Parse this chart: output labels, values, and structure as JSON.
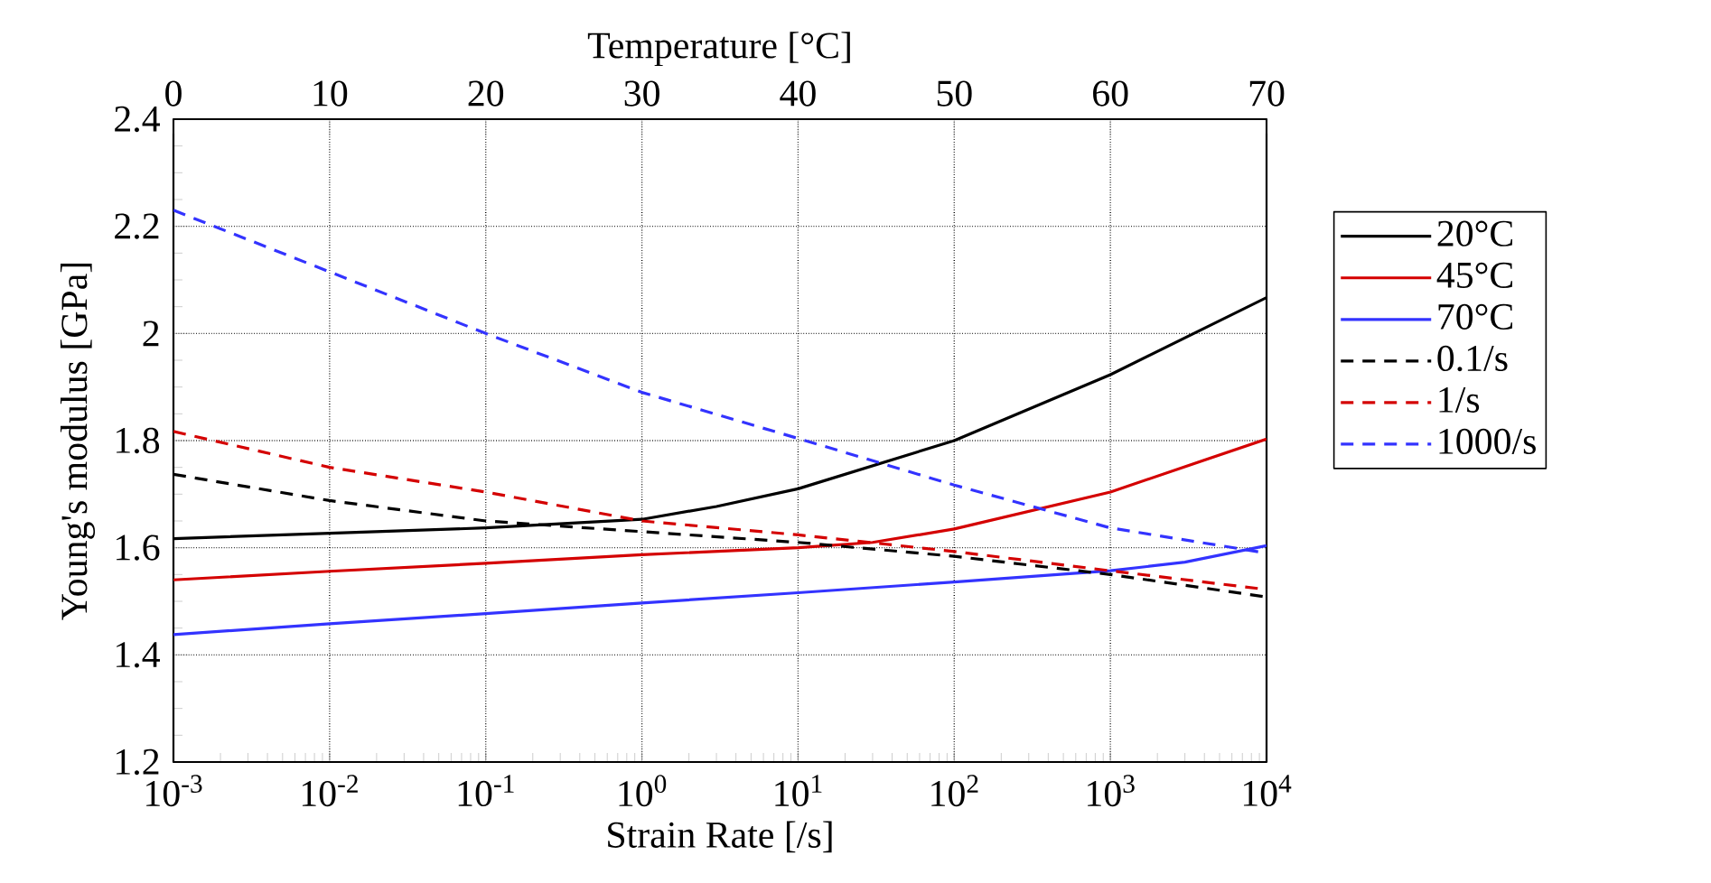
{
  "chart_data": {
    "type": "line",
    "xlabel": "Strain Rate [/s]",
    "x2label": "Temperature [°C]",
    "ylabel": "Young's modulus [GPa]",
    "log": "x",
    "xlim": [
      0.001,
      10000
    ],
    "xticks": [
      {
        "value": 0.001,
        "label": "10$^{-3}$"
      },
      {
        "value": 0.01,
        "label": "10$^{-2}$"
      },
      {
        "value": 0.1,
        "label": "10$^{-1}$"
      },
      {
        "value": 1,
        "label": "10$^{0}$"
      },
      {
        "value": 10,
        "label": "10$^{1}$"
      },
      {
        "value": 100,
        "label": "10$^{2}$"
      },
      {
        "value": 1000,
        "label": "10$^{3}$"
      },
      {
        "value": 10000,
        "label": "10$^{4}$"
      }
    ],
    "x2lim": [
      0,
      70
    ],
    "x2ticks": [
      0,
      10,
      20,
      30,
      40,
      50,
      60,
      70
    ],
    "ylim": [
      1.2,
      2.4
    ],
    "yticks": [
      1.2,
      1.4,
      1.6,
      1.8,
      2,
      2.2,
      2.4
    ],
    "grid": true,
    "legend": "right",
    "series": [
      {
        "name": "20°C",
        "color": "#000000",
        "line_style": "solid",
        "x": [
          0.001,
          0.01,
          0.1,
          1,
          3,
          10,
          100,
          1000,
          10000
        ],
        "values": [
          1.617,
          1.627,
          1.637,
          1.653,
          1.677,
          1.71,
          1.8,
          1.923,
          2.067
        ]
      },
      {
        "name": "45°C",
        "color": "#d40000",
        "line_style": "solid",
        "x": [
          0.001,
          0.01,
          0.1,
          1,
          10,
          30,
          100,
          1000,
          10000
        ],
        "values": [
          1.54,
          1.556,
          1.571,
          1.587,
          1.6,
          1.61,
          1.635,
          1.704,
          1.803
        ]
      },
      {
        "name": "70°C",
        "color": "#3333ff",
        "line_style": "solid",
        "x": [
          0.001,
          0.01,
          0.1,
          1,
          10,
          100,
          1000,
          3000,
          10000
        ],
        "values": [
          1.438,
          1.458,
          1.477,
          1.497,
          1.516,
          1.536,
          1.557,
          1.573,
          1.604
        ]
      },
      {
        "name": "0.1/s",
        "color": "#000000",
        "line_style": "dashed",
        "axis": "x2",
        "x": [
          0,
          10,
          20,
          30,
          40,
          50,
          60,
          70
        ],
        "values": [
          1.737,
          1.688,
          1.65,
          1.63,
          1.61,
          1.584,
          1.55,
          1.508
        ]
      },
      {
        "name": "1/s",
        "color": "#d40000",
        "line_style": "dashed",
        "axis": "x2",
        "x": [
          0,
          10,
          20,
          30,
          40,
          50,
          60,
          70
        ],
        "values": [
          1.817,
          1.75,
          1.704,
          1.65,
          1.624,
          1.593,
          1.557,
          1.522
        ]
      },
      {
        "name": "1000/s",
        "color": "#3333ff",
        "line_style": "dashed",
        "axis": "x2",
        "x": [
          0,
          10,
          20,
          30,
          40,
          50,
          60,
          70
        ],
        "values": [
          2.23,
          2.115,
          2.0,
          1.89,
          1.804,
          1.717,
          1.637,
          1.59
        ]
      }
    ]
  }
}
